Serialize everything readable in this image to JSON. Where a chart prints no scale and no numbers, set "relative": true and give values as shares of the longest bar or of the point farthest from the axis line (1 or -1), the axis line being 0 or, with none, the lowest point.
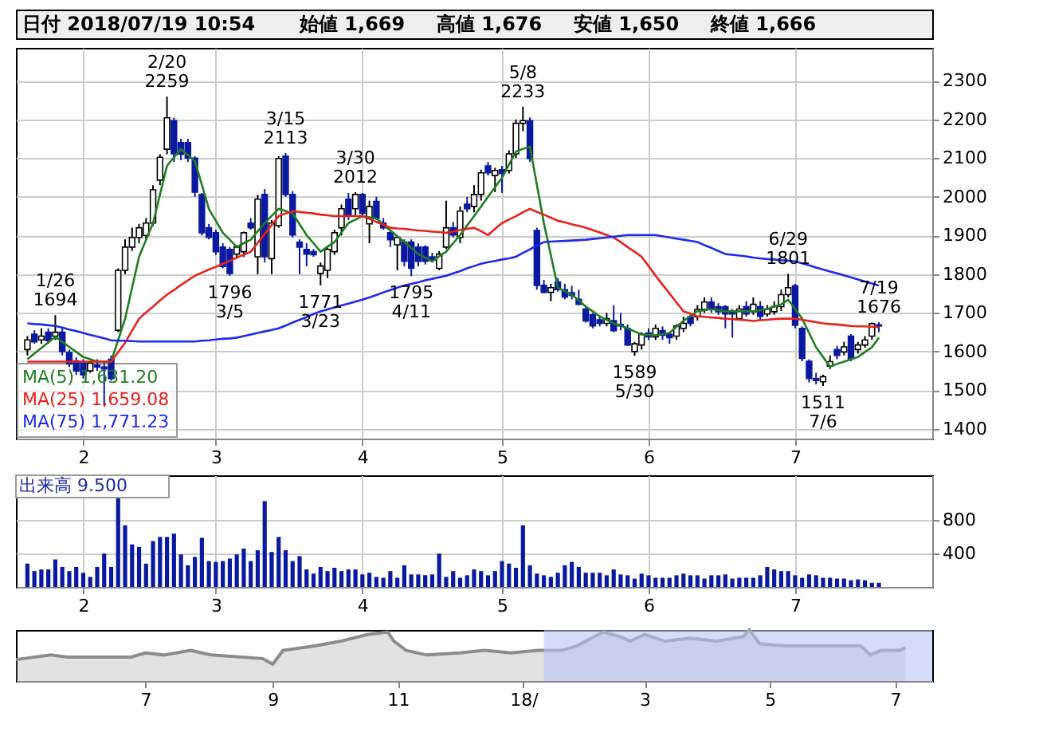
{
  "chart_data": [
    {
      "type": "candlestick",
      "annotations": [
        "日付 2018/07/19 10:54",
        "始値 1,669",
        "高値 1,676",
        "安値 1,650",
        "終値 1,666",
        {
          "text": "1/26",
          "y": 1694
        },
        {
          "text": "1694",
          "y": 1694
        },
        {
          "text": "2/20",
          "y": 2259
        },
        {
          "text": "2259",
          "y": 2259
        },
        {
          "text": "1796",
          "y": 1796
        },
        {
          "text": "3/5",
          "y": 1796
        },
        {
          "text": "3/15",
          "y": 2113
        },
        {
          "text": "2113",
          "y": 2113
        },
        {
          "text": "1771",
          "y": 1771
        },
        {
          "text": "3/23",
          "y": 1771
        },
        {
          "text": "3/30",
          "y": 2012
        },
        {
          "text": "2012",
          "y": 2012
        },
        {
          "text": "1795",
          "y": 1795
        },
        {
          "text": "4/11",
          "y": 1795
        },
        {
          "text": "5/8",
          "y": 2233
        },
        {
          "text": "2233",
          "y": 2233
        },
        {
          "text": "1589",
          "y": 1589
        },
        {
          "text": "5/30",
          "y": 1589
        },
        {
          "text": "6/29",
          "y": 1801
        },
        {
          "text": "1801",
          "y": 1801
        },
        {
          "text": "1511",
          "y": 1511
        },
        {
          "text": "7/6",
          "y": 1511
        },
        {
          "text": "7/19",
          "y": 1676
        },
        {
          "text": "1676",
          "y": 1676
        }
      ],
      "categories": [
        null,
        null,
        null,
        null,
        null,
        null,
        null,
        null,
        "2",
        null,
        null,
        null,
        null,
        null,
        null,
        null,
        null,
        null,
        null,
        null,
        null,
        null,
        null,
        null,
        null,
        null,
        null,
        "3",
        null,
        null,
        null,
        null,
        null,
        null,
        null,
        null,
        null,
        null,
        null,
        null,
        null,
        null,
        null,
        null,
        null,
        null,
        null,
        null,
        "4",
        null,
        null,
        null,
        null,
        null,
        null,
        null,
        null,
        null,
        null,
        null,
        null,
        null,
        null,
        null,
        null,
        null,
        null,
        null,
        "5",
        null,
        null,
        null,
        null,
        null,
        null,
        null,
        null,
        null,
        null,
        null,
        null,
        null,
        null,
        null,
        null,
        null,
        null,
        null,
        null,
        "6",
        null,
        null,
        null,
        null,
        null,
        null,
        null,
        null,
        null,
        null,
        null,
        null,
        null,
        null,
        null,
        null,
        null,
        null,
        null,
        null,
        "7",
        null,
        null,
        null,
        null,
        null,
        null,
        null,
        null,
        null,
        null,
        null,
        null
      ],
      "ohlc": [
        [
          1605,
          1640,
          1590,
          1630
        ],
        [
          1645,
          1655,
          1620,
          1625
        ],
        [
          1630,
          1660,
          1620,
          1640
        ],
        [
          1650,
          1660,
          1620,
          1628
        ],
        [
          1640,
          1694,
          1630,
          1650
        ],
        [
          1650,
          1660,
          1590,
          1600
        ],
        [
          1598,
          1605,
          1560,
          1568
        ],
        [
          1576,
          1585,
          1540,
          1550
        ],
        [
          1570,
          1580,
          1530,
          1540
        ],
        [
          1550,
          1575,
          1545,
          1570
        ],
        [
          1565,
          1580,
          1550,
          1560
        ],
        [
          1560,
          1575,
          1460,
          1555
        ],
        [
          1580,
          1590,
          1525,
          1530
        ],
        [
          1655,
          1815,
          1650,
          1810
        ],
        [
          1810,
          1890,
          1800,
          1870
        ],
        [
          1870,
          1920,
          1860,
          1895
        ],
        [
          1895,
          1930,
          1880,
          1920
        ],
        [
          1900,
          1945,
          1890,
          1932
        ],
        [
          1932,
          2030,
          1925,
          2018
        ],
        [
          2043,
          2110,
          2030,
          2102
        ],
        [
          2123,
          2259,
          2110,
          2204
        ],
        [
          2197,
          2205,
          2090,
          2111
        ],
        [
          2140,
          2150,
          2095,
          2110
        ],
        [
          2140,
          2150,
          2090,
          2100
        ],
        [
          2100,
          2105,
          2000,
          2012
        ],
        [
          2006,
          2010,
          1900,
          1907
        ],
        [
          1920,
          1930,
          1890,
          1895
        ],
        [
          1907,
          1915,
          1850,
          1858
        ],
        [
          1870,
          1880,
          1815,
          1820
        ],
        [
          1864,
          1870,
          1796,
          1802
        ],
        [
          1852,
          1875,
          1840,
          1870
        ],
        [
          1858,
          1910,
          1845,
          1907
        ],
        [
          1932,
          1945,
          1915,
          1920
        ],
        [
          1845,
          2005,
          1800,
          1994
        ],
        [
          2006,
          2020,
          1830,
          1845
        ],
        [
          1840,
          1940,
          1800,
          1932
        ],
        [
          1926,
          2105,
          1920,
          2099
        ],
        [
          2105,
          2113,
          2000,
          2006
        ],
        [
          2006,
          2015,
          1895,
          1901
        ],
        [
          1883,
          1890,
          1800,
          1870
        ],
        [
          1864,
          1880,
          1820,
          1852
        ],
        [
          1858,
          1865,
          1845,
          1850
        ],
        [
          1802,
          1830,
          1771,
          1821
        ],
        [
          1810,
          1870,
          1790,
          1864
        ],
        [
          1858,
          1915,
          1850,
          1907
        ],
        [
          1920,
          1980,
          1900,
          1969
        ],
        [
          1994,
          2010,
          1940,
          1950
        ],
        [
          1969,
          2012,
          1950,
          2006
        ],
        [
          2006,
          2010,
          1950,
          1957
        ],
        [
          1930,
          1990,
          1880,
          1975
        ],
        [
          1988,
          2000,
          1940,
          1944
        ],
        [
          1932,
          1945,
          1915,
          1920
        ],
        [
          1907,
          1915,
          1870,
          1889
        ],
        [
          1876,
          1901,
          1810,
          1895
        ],
        [
          1883,
          1890,
          1820,
          1833
        ],
        [
          1883,
          1890,
          1795,
          1815
        ],
        [
          1870,
          1880,
          1820,
          1833
        ],
        [
          1870,
          1875,
          1825,
          1833
        ],
        [
          1845,
          1855,
          1830,
          1836
        ],
        [
          1815,
          1860,
          1810,
          1852
        ],
        [
          1870,
          1990,
          1865,
          1920
        ],
        [
          1920,
          1935,
          1895,
          1901
        ],
        [
          1895,
          1975,
          1880,
          1963
        ],
        [
          1981,
          2000,
          1960,
          1969
        ],
        [
          1975,
          2030,
          1960,
          2006
        ],
        [
          2006,
          2070,
          1990,
          2062
        ],
        [
          2080,
          2090,
          2055,
          2062
        ],
        [
          2055,
          2075,
          2012,
          2068
        ],
        [
          2070,
          2080,
          2010,
          2060
        ],
        [
          2068,
          2120,
          2060,
          2111
        ],
        [
          2111,
          2200,
          2100,
          2190
        ],
        [
          2190,
          2233,
          2170,
          2197
        ],
        [
          2197,
          2205,
          2090,
          2099
        ],
        [
          1913,
          1920,
          1760,
          1771
        ],
        [
          1771,
          1785,
          1750,
          1753
        ],
        [
          1753,
          1775,
          1730,
          1765
        ],
        [
          1780,
          1790,
          1755,
          1760
        ],
        [
          1760,
          1775,
          1735,
          1741
        ],
        [
          1752,
          1770,
          1735,
          1745
        ],
        [
          1735,
          1760,
          1720,
          1722
        ],
        [
          1710,
          1715,
          1675,
          1679
        ],
        [
          1695,
          1700,
          1660,
          1666
        ],
        [
          1682,
          1690,
          1665,
          1673
        ],
        [
          1673,
          1700,
          1665,
          1685
        ],
        [
          1680,
          1720,
          1650,
          1654
        ],
        [
          1670,
          1700,
          1655,
          1666
        ],
        [
          1660,
          1670,
          1615,
          1617
        ],
        [
          1600,
          1625,
          1589,
          1620
        ],
        [
          1617,
          1650,
          1605,
          1645
        ],
        [
          1648,
          1660,
          1630,
          1638
        ],
        [
          1638,
          1670,
          1630,
          1660
        ],
        [
          1654,
          1665,
          1630,
          1642
        ],
        [
          1645,
          1650,
          1620,
          1636
        ],
        [
          1640,
          1670,
          1630,
          1666
        ],
        [
          1660,
          1690,
          1650,
          1673
        ],
        [
          1690,
          1700,
          1665,
          1673
        ],
        [
          1690,
          1720,
          1680,
          1709
        ],
        [
          1709,
          1740,
          1700,
          1728
        ],
        [
          1728,
          1740,
          1700,
          1710
        ],
        [
          1716,
          1725,
          1695,
          1703
        ],
        [
          1716,
          1720,
          1660,
          1697
        ],
        [
          1703,
          1710,
          1636,
          1697
        ],
        [
          1685,
          1720,
          1680,
          1710
        ],
        [
          1716,
          1730,
          1690,
          1697
        ],
        [
          1703,
          1740,
          1695,
          1722
        ],
        [
          1716,
          1730,
          1680,
          1691
        ],
        [
          1697,
          1720,
          1690,
          1710
        ],
        [
          1703,
          1730,
          1695,
          1716
        ],
        [
          1716,
          1760,
          1705,
          1747
        ],
        [
          1747,
          1801,
          1740,
          1765
        ],
        [
          1770,
          1775,
          1660,
          1668
        ],
        [
          1660,
          1665,
          1575,
          1582
        ],
        [
          1575,
          1580,
          1520,
          1530
        ],
        [
          1530,
          1545,
          1515,
          1525
        ],
        [
          1522,
          1540,
          1511,
          1535
        ],
        [
          1562,
          1590,
          1555,
          1574
        ],
        [
          1605,
          1615,
          1580,
          1590
        ],
        [
          1599,
          1625,
          1590,
          1612
        ],
        [
          1640,
          1645,
          1575,
          1581
        ],
        [
          1605,
          1625,
          1595,
          1617
        ],
        [
          1617,
          1640,
          1610,
          1630
        ],
        [
          1640,
          1675,
          1630,
          1672
        ],
        [
          1669,
          1676,
          1650,
          1666
        ]
      ],
      "colors": [
        "#ffffff",
        "#0a1aa0",
        "#ffffff",
        "#0a1aa0",
        "#ffffff",
        "#0a1aa0",
        "#0a1aa0",
        "#0a1aa0",
        "#0a1aa0",
        "#ffffff",
        "#0a1aa0",
        "#0a1aa0",
        "#0a1aa0",
        "#ffffff",
        "#ffffff",
        "#ffffff",
        "#ffffff",
        "#ffffff",
        "#ffffff",
        "#ffffff",
        "#ffffff",
        "#0a1aa0",
        "#0a1aa0",
        "#0a1aa0",
        "#0a1aa0",
        "#0a1aa0",
        "#0a1aa0",
        "#0a1aa0",
        "#0a1aa0",
        "#0a1aa0",
        "#ffffff",
        "#ffffff",
        "#0a1aa0",
        "#ffffff",
        "#0a1aa0",
        "#ffffff",
        "#ffffff",
        "#0a1aa0",
        "#0a1aa0",
        "#0a1aa0",
        "#0a1aa0",
        "#0a1aa0",
        "#ffffff",
        "#ffffff",
        "#ffffff",
        "#ffffff",
        "#0a1aa0",
        "#ffffff",
        "#0a1aa0",
        "#ffffff",
        "#0a1aa0",
        "#0a1aa0",
        "#0a1aa0",
        "#ffffff",
        "#0a1aa0",
        "#0a1aa0",
        "#0a1aa0",
        "#0a1aa0",
        "#0a1aa0",
        "#ffffff",
        "#ffffff",
        "#0a1aa0",
        "#ffffff",
        "#0a1aa0",
        "#ffffff",
        "#ffffff",
        "#0a1aa0",
        "#ffffff",
        "#0a1aa0",
        "#ffffff",
        "#ffffff",
        "#ffffff",
        "#0a1aa0",
        "#0a1aa0",
        "#0a1aa0",
        "#ffffff",
        "#0a1aa0",
        "#0a1aa0",
        "#0a1aa0",
        "#0a1aa0",
        "#0a1aa0",
        "#0a1aa0",
        "#0a1aa0",
        "#ffffff",
        "#0a1aa0",
        "#0a1aa0",
        "#0a1aa0",
        "#ffffff",
        "#ffffff",
        "#0a1aa0",
        "#ffffff",
        "#0a1aa0",
        "#0a1aa0",
        "#ffffff",
        "#ffffff",
        "#0a1aa0",
        "#ffffff",
        "#ffffff",
        "#0a1aa0",
        "#0a1aa0",
        "#0a1aa0",
        "#0a1aa0",
        "#ffffff",
        "#0a1aa0",
        "#ffffff",
        "#0a1aa0",
        "#ffffff",
        "#ffffff",
        "#ffffff",
        "#ffffff",
        "#0a1aa0",
        "#0a1aa0",
        "#0a1aa0",
        "#0a1aa0",
        "#ffffff",
        "#ffffff",
        "#0a1aa0",
        "#ffffff",
        "#0a1aa0",
        "#ffffff",
        "#ffffff",
        "#ffffff",
        "#0a1aa0"
      ],
      "series": [
        {
          "name": "MA(5)   1,631.20",
          "type": "line",
          "color": "#1e7d1e",
          "values": [
            1580,
            1595,
            1609,
            1624,
            1638,
            1625,
            1612,
            1599,
            1586,
            1580,
            1574,
            1574,
            1574,
            1630,
            1685,
            1765,
            1845,
            1889,
            1932,
            2006,
            2080,
            2102,
            2123,
            2108,
            2092,
            2031,
            1969,
            1938,
            1907,
            1889,
            1870,
            1880,
            1889,
            1911,
            1932,
            1951,
            1969,
            1963,
            1957,
            1929,
            1901,
            1880,
            1858,
            1871,
            1883,
            1908,
            1932,
            1941,
            1950,
            1947,
            1944,
            1929,
            1913,
            1898,
            1883,
            1868,
            1852,
            1843,
            1833,
            1846,
            1858,
            1880,
            1901,
            1926,
            1950,
            1975,
            2000,
            2025,
            2049,
            2083,
            2117,
            2124,
            2130,
            2031,
            1932,
            1849,
            1765,
            1756,
            1747,
            1732,
            1716,
            1704,
            1691,
            1682,
            1673,
            1667,
            1660,
            1652,
            1644,
            1643,
            1642,
            1645,
            1648,
            1664,
            1679,
            1692,
            1704,
            1707,
            1710,
            1707,
            1704,
            1704,
            1704,
            1704,
            1704,
            1707,
            1710,
            1716,
            1722,
            1734,
            1710,
            1685,
            1648,
            1611,
            1586,
            1561,
            1568,
            1574,
            1580,
            1586,
            1599,
            1611,
            1636
          ]
        },
        {
          "name": "MA(25)  1,659.08",
          "type": "line",
          "color": "#e8201a",
          "values": [
            1574,
            1574,
            1574,
            1574,
            1574,
            1574,
            1574,
            1574,
            1574,
            1574,
            1574,
            1574,
            1574,
            1598,
            1623,
            1654,
            1685,
            1701,
            1716,
            1732,
            1747,
            1759,
            1772,
            1784,
            1796,
            1804,
            1812,
            1819,
            1827,
            1835,
            1843,
            1850,
            1858,
            1881,
            1904,
            1927,
            1950,
            1957,
            1963,
            1961,
            1959,
            1957,
            1954,
            1952,
            1950,
            1950,
            1950,
            1950,
            1950,
            1943,
            1935,
            1928,
            1920,
            1918,
            1917,
            1915,
            1913,
            1912,
            1910,
            1909,
            1907,
            1910,
            1914,
            1917,
            1920,
            1911,
            1901,
            1917,
            1932,
            1941,
            1950,
            1960,
            1969,
            1961,
            1954,
            1946,
            1938,
            1934,
            1929,
            1925,
            1920,
            1914,
            1908,
            1901,
            1895,
            1883,
            1870,
            1858,
            1845,
            1821,
            1796,
            1773,
            1750,
            1727,
            1704,
            1698,
            1691,
            1690,
            1688,
            1687,
            1685,
            1684,
            1682,
            1681,
            1679,
            1681,
            1682,
            1684,
            1685,
            1685,
            1685,
            1682,
            1679,
            1676,
            1673,
            1671,
            1670,
            1668,
            1666,
            1665,
            1665,
            1664,
            1663
          ]
        },
        {
          "name": "MA(75)  1,771.23",
          "type": "line",
          "color": "#1a2aee",
          "values": [
            1673,
            1671,
            1670,
            1668,
            1666,
            1662,
            1657,
            1653,
            1648,
            1643,
            1639,
            1634,
            1629,
            1628,
            1628,
            1627,
            1626,
            1626,
            1626,
            1626,
            1626,
            1626,
            1626,
            1626,
            1626,
            1628,
            1629,
            1631,
            1633,
            1634,
            1636,
            1640,
            1644,
            1648,
            1652,
            1656,
            1660,
            1667,
            1675,
            1682,
            1689,
            1697,
            1704,
            1709,
            1714,
            1719,
            1724,
            1729,
            1734,
            1740,
            1746,
            1753,
            1759,
            1765,
            1771,
            1775,
            1779,
            1784,
            1788,
            1792,
            1796,
            1802,
            1808,
            1815,
            1821,
            1827,
            1831,
            1834,
            1838,
            1841,
            1845,
            1855,
            1864,
            1874,
            1883,
            1884,
            1885,
            1886,
            1887,
            1888,
            1889,
            1891,
            1893,
            1895,
            1897,
            1899,
            1901,
            1901,
            1901,
            1901,
            1901,
            1898,
            1895,
            1892,
            1889,
            1886,
            1883,
            1875,
            1868,
            1860,
            1852,
            1850,
            1848,
            1846,
            1843,
            1841,
            1839,
            1838,
            1836,
            1835,
            1833,
            1828,
            1823,
            1817,
            1812,
            1807,
            1802,
            1797,
            1792,
            1786,
            1781,
            1776,
            1771
          ]
        }
      ],
      "legend": "bottom left",
      "ylim": [
        1375,
        2385
      ],
      "yticks": [
        1400,
        1500,
        1600,
        1700,
        1800,
        1900,
        2000,
        2100,
        2200,
        2300
      ],
      "grid": true
    },
    {
      "type": "bar",
      "annotations": [
        "出来高    9.500"
      ],
      "categories": [
        null,
        null,
        null,
        null,
        null,
        null,
        null,
        null,
        "2",
        null,
        null,
        null,
        null,
        null,
        null,
        null,
        null,
        null,
        null,
        null,
        null,
        null,
        null,
        null,
        null,
        null,
        null,
        "3",
        null,
        null,
        null,
        null,
        null,
        null,
        null,
        null,
        null,
        null,
        null,
        null,
        null,
        null,
        null,
        null,
        null,
        null,
        null,
        null,
        "4",
        null,
        null,
        null,
        null,
        null,
        null,
        null,
        null,
        null,
        null,
        null,
        null,
        null,
        null,
        null,
        null,
        null,
        null,
        null,
        "5",
        null,
        null,
        null,
        null,
        null,
        null,
        null,
        null,
        null,
        null,
        null,
        null,
        null,
        null,
        null,
        null,
        null,
        null,
        null,
        null,
        "6",
        null,
        null,
        null,
        null,
        null,
        null,
        null,
        null,
        null,
        null,
        null,
        null,
        null,
        null,
        null,
        null,
        null,
        null,
        null,
        null,
        "7",
        null,
        null,
        null,
        null,
        null,
        null,
        null,
        null,
        null,
        null,
        null,
        null
      ],
      "values": [
        280,
        190,
        210,
        210,
        330,
        240,
        190,
        240,
        170,
        120,
        240,
        400,
        240,
        1100,
        740,
        510,
        480,
        280,
        550,
        600,
        600,
        640,
        390,
        260,
        360,
        590,
        310,
        300,
        310,
        340,
        390,
        460,
        310,
        440,
        1030,
        420,
        600,
        440,
        310,
        370,
        210,
        160,
        240,
        190,
        230,
        190,
        210,
        210,
        150,
        170,
        120,
        110,
        190,
        110,
        260,
        150,
        150,
        140,
        150,
        400,
        120,
        190,
        110,
        140,
        210,
        190,
        140,
        190,
        310,
        280,
        230,
        740,
        260,
        160,
        140,
        120,
        170,
        260,
        300,
        240,
        170,
        170,
        170,
        140,
        210,
        150,
        140,
        100,
        160,
        140,
        110,
        110,
        110,
        140,
        160,
        140,
        140,
        100,
        140,
        140,
        150,
        100,
        110,
        110,
        110,
        140,
        240,
        210,
        190,
        190,
        140,
        110,
        150,
        140,
        110,
        110,
        100,
        100,
        80,
        90,
        80,
        50,
        50
      ],
      "color": "#0a1aa0",
      "ylim": [
        0,
        1340
      ],
      "yticks": [
        400,
        800
      ],
      "grid": true
    },
    {
      "type": "area",
      "relative": true,
      "x": [
        "2017-04-29",
        "2017-05-16",
        "2017-05-24",
        "2017-06-24",
        "2017-07-01",
        "2017-07-10",
        "2017-07-23",
        "2017-08-02",
        "2017-08-27",
        "2017-09-01",
        "2017-09-06",
        "2017-09-22",
        "2017-10-04",
        "2017-10-17",
        "2017-10-27",
        "2017-10-30",
        "2017-11-05",
        "2017-11-15",
        "2017-12-01",
        "2017-12-13",
        "2017-12-26",
        "2018-01-08",
        "2018-01-20",
        "2018-01-27",
        "2018-02-09",
        "2018-02-17",
        "2018-02-22",
        "2018-03-01",
        "2018-03-11",
        "2018-03-23",
        "2018-04-05",
        "2018-04-18",
        "2018-04-21",
        "2018-04-26",
        "2018-05-07",
        "2018-05-26",
        "2018-06-14",
        "2018-06-19",
        "2018-06-24",
        "2018-07-03",
        "2018-07-06"
      ],
      "values": [
        0.42,
        0.51,
        0.47,
        0.47,
        0.55,
        0.51,
        0.6,
        0.51,
        0.44,
        0.33,
        0.6,
        0.69,
        0.78,
        0.91,
        0.96,
        0.78,
        0.6,
        0.51,
        0.55,
        0.6,
        0.55,
        0.6,
        0.6,
        0.69,
        0.96,
        0.87,
        0.78,
        0.91,
        0.78,
        0.84,
        0.78,
        0.87,
        1.0,
        0.73,
        0.69,
        0.69,
        0.69,
        0.51,
        0.6,
        0.6,
        0.65
      ],
      "color": "#8c8c8c",
      "bands": [
        {
          "axis": "x",
          "from": "2018-01-11",
          "to": "2018-07-19",
          "color": "#b7c4f5"
        }
      ],
      "xlim": [
        "2017-04-29",
        "2018-07-19"
      ],
      "xticks": [
        {
          "value": "2017-07-01",
          "label": "7"
        },
        {
          "value": "2017-09-01",
          "label": "9"
        },
        {
          "value": "2017-11-01",
          "label": "11"
        },
        {
          "value": "2018-01-01",
          "label": "18/"
        },
        {
          "value": "2018-03-01",
          "label": "3"
        },
        {
          "value": "2018-05-01",
          "label": "5"
        },
        {
          "value": "2018-07-01",
          "label": "7"
        }
      ]
    }
  ]
}
